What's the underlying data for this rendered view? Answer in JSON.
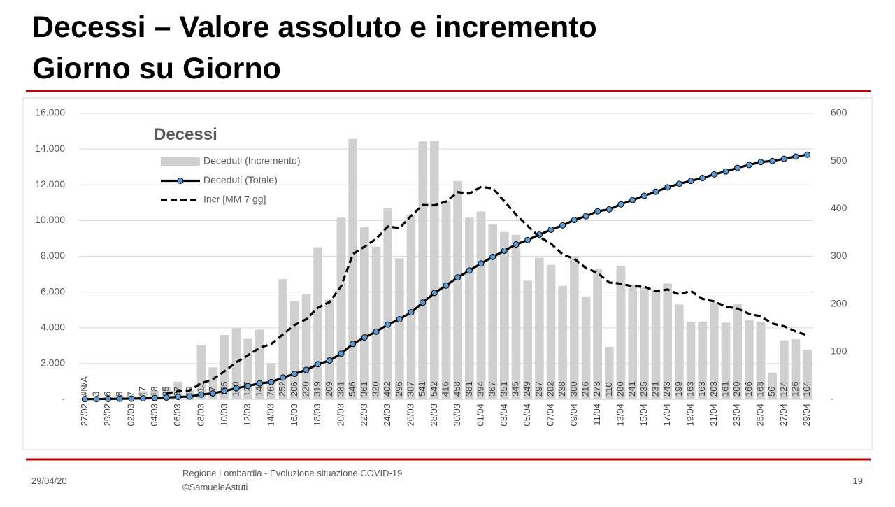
{
  "header": {
    "title_lines": [
      "Decessi – Valore assoluto e incremento",
      "Giorno su Giorno"
    ]
  },
  "footer": {
    "date": "29/04/20",
    "source": "Regione Lombardia - Evoluzione situazione COVID-19",
    "author": "©SamueleAstuti",
    "page": "19"
  },
  "chart_data": {
    "type": "combo",
    "legend_title": "Decessi",
    "grid": true,
    "categories": [
      "27/02",
      null,
      "29/02",
      null,
      "02/03",
      null,
      "04/03",
      null,
      "06/03",
      null,
      "08/03",
      null,
      "10/03",
      null,
      "12/03",
      null,
      "14/03",
      null,
      "16/03",
      null,
      "18/03",
      null,
      "20/03",
      null,
      "22/03",
      null,
      "24/03",
      null,
      "26/03",
      null,
      "28/03",
      null,
      "30/03",
      null,
      "01/04",
      null,
      "03/04",
      null,
      "05/04",
      null,
      "07/04",
      null,
      "09/04",
      null,
      "11/04",
      null,
      "13/04",
      null,
      "15/04",
      null,
      "17/04",
      null,
      "19/04",
      null,
      "21/04",
      null,
      "23/04",
      null,
      "25/04",
      null,
      "27/04",
      null,
      "29/04"
    ],
    "ylim": [
      0,
      16000
    ],
    "yticks": [
      {
        "value": 0,
        "label": "-"
      },
      {
        "value": 2000,
        "label": "2.000"
      },
      {
        "value": 4000,
        "label": "4.000"
      },
      {
        "value": 6000,
        "label": "6.000"
      },
      {
        "value": 8000,
        "label": "8.000"
      },
      {
        "value": 10000,
        "label": "10.000"
      },
      {
        "value": 12000,
        "label": "12.000"
      },
      {
        "value": 14000,
        "label": "14.000"
      },
      {
        "value": 16000,
        "label": "16.000"
      }
    ],
    "y2lim": [
      0,
      600
    ],
    "y2ticks": [
      {
        "value": 0,
        "label": "-"
      },
      100,
      200,
      300,
      400,
      500,
      600
    ],
    "series": [
      {
        "name": "Deceduti (Incremento)",
        "type": "bar",
        "axis": "y2",
        "color": "#d0d0d0",
        "values": [
          null,
          3,
          6,
          8,
          7,
          17,
          18,
          25,
          37,
          19,
          113,
          67,
          135,
          149,
          127,
          146,
          76,
          252,
          206,
          220,
          319,
          209,
          381,
          546,
          361,
          320,
          402,
          296,
          387,
          541,
          542,
          416,
          458,
          381,
          394,
          367,
          351,
          345,
          249,
          297,
          282,
          238,
          300,
          216,
          273,
          110,
          280,
          241,
          235,
          231,
          243,
          199,
          163,
          163,
          203,
          161,
          200,
          166,
          163,
          56,
          124,
          126,
          104
        ],
        "value_labels": [
          "#N/A",
          "3",
          "6",
          "8",
          "7",
          "17",
          "18",
          "25",
          "37",
          "19",
          "113",
          "67",
          "135",
          "149",
          "127",
          "146",
          "76",
          "252",
          "206",
          "220",
          "319",
          "209",
          "381",
          "546",
          "361",
          "320",
          "402",
          "296",
          "387",
          "541",
          "542",
          "416",
          "458",
          "381",
          "394",
          "367",
          "351",
          "345",
          "249",
          "297",
          "282",
          "238",
          "300",
          "216",
          "273",
          "110",
          "280",
          "241",
          "235",
          "231",
          "243",
          "199",
          "163",
          "163",
          "203",
          "161",
          "200",
          "166",
          "163",
          "56",
          "124",
          "126",
          "104"
        ]
      },
      {
        "name": "Deceduti (Totale)",
        "type": "line",
        "axis": "y",
        "color": "#000000",
        "marker_color": "#5b9bd5",
        "line_style": "solid",
        "values": [
          14,
          17,
          23,
          31,
          38,
          55,
          73,
          98,
          135,
          154,
          267,
          334,
          469,
          618,
          745,
          891,
          967,
          1219,
          1425,
          1645,
          1964,
          2173,
          2554,
          3100,
          3461,
          3781,
          4183,
          4479,
          4866,
          5407,
          5949,
          6365,
          6823,
          7204,
          7598,
          7965,
          8316,
          8661,
          8910,
          9207,
          9489,
          9727,
          10027,
          10243,
          10516,
          10626,
          10906,
          11147,
          11382,
          11613,
          11856,
          12055,
          12218,
          12381,
          12584,
          12745,
          12945,
          13111,
          13274,
          13330,
          13454,
          13580,
          13684
        ]
      },
      {
        "name": "Incr [MM 7 gg]",
        "type": "line",
        "axis": "y2",
        "color": "#000000",
        "line_style": "dashed",
        "values": [
          null,
          null,
          null,
          null,
          null,
          null,
          null,
          12,
          16.9,
          18.7,
          33.7,
          42.3,
          59.1,
          77.9,
          92.4,
          108,
          116.1,
          136,
          155.9,
          168,
          192.3,
          204,
          237.6,
          304.7,
          320.3,
          336.6,
          362.6,
          359.3,
          384.7,
          407.6,
          407,
          414.9,
          434.6,
          431.6,
          445.6,
          442.7,
          415.6,
          387.4,
          363.6,
          340.6,
          326.4,
          304.1,
          294.6,
          275.3,
          265,
          245.1,
          242.7,
          236.9,
          236.4,
          226.6,
          230.4,
          219.9,
          227.4,
          210.7,
          205.3,
          194.7,
          190.3,
          179.3,
          174.1,
          158.9,
          153.3,
          142.3,
          134.1
        ]
      }
    ]
  }
}
